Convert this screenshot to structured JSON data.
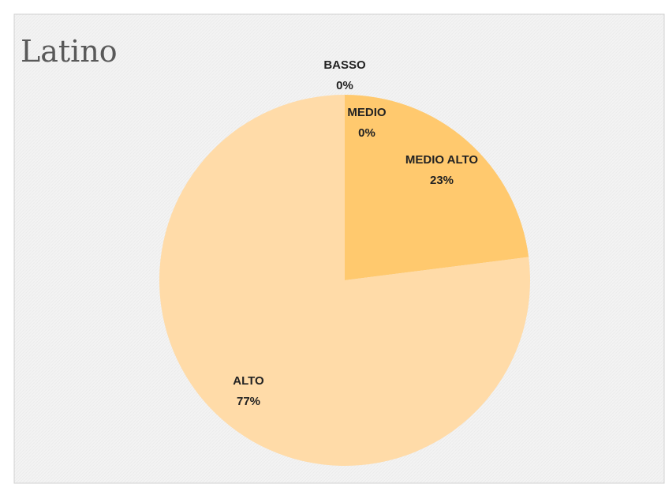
{
  "chart_data": {
    "type": "pie",
    "title": "Latino",
    "categories": [
      "BASSO",
      "MEDIO",
      "MEDIO ALTO",
      "ALTO"
    ],
    "values": [
      0,
      0,
      23,
      77
    ],
    "value_labels": [
      "0%",
      "0%",
      "23%",
      "77%"
    ],
    "colors": [
      "#f4a640",
      "#f9b95a",
      "#ffc96e",
      "#ffdba8"
    ]
  }
}
